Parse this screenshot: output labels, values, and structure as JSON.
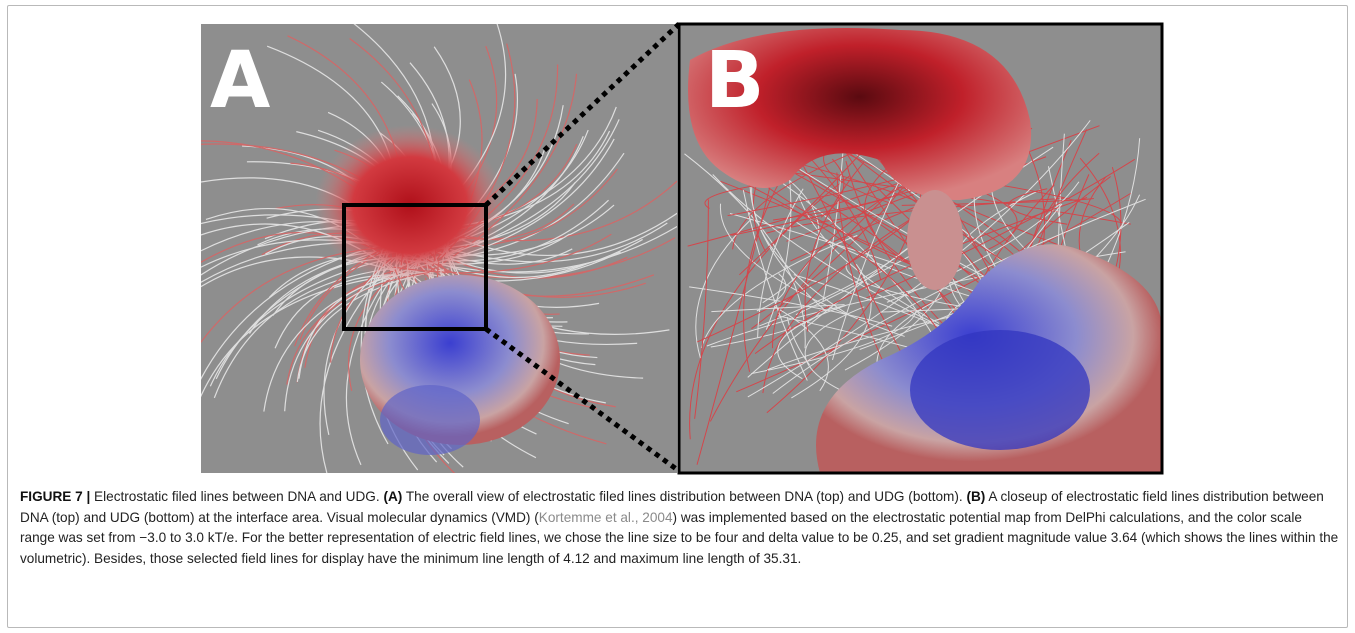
{
  "figure": {
    "panels": [
      {
        "label": "A"
      },
      {
        "label": "B"
      }
    ],
    "caption": {
      "label": "FIGURE 7 |",
      "title": " Electrostatic filed lines between DNA and UDG. ",
      "a_label": "(A)",
      "a_text": " The overall view of electrostatic filed lines distribution between DNA (top) and UDG (bottom). ",
      "b_label": "(B)",
      "b_text_1": " A closeup of electrostatic field lines distribution between DNA (top) and UDG (bottom) at the interface area. Visual molecular dynamics (VMD) (",
      "citation": "Kortemme et al., 2004",
      "b_text_2": ") was implemented based on the electrostatic potential map from DelPhi calculations, and the color scale range was set from −3.0 to 3.0 kT/e. For the better representation of electric field lines, we chose the line size to be four and delta value to be 0.25, and set gradient magnitude value 3.64 (which shows the lines within the volumetric). Besides, those selected field lines for display have the minimum line length of 4.12 and maximum line length of 35.31."
    }
  }
}
